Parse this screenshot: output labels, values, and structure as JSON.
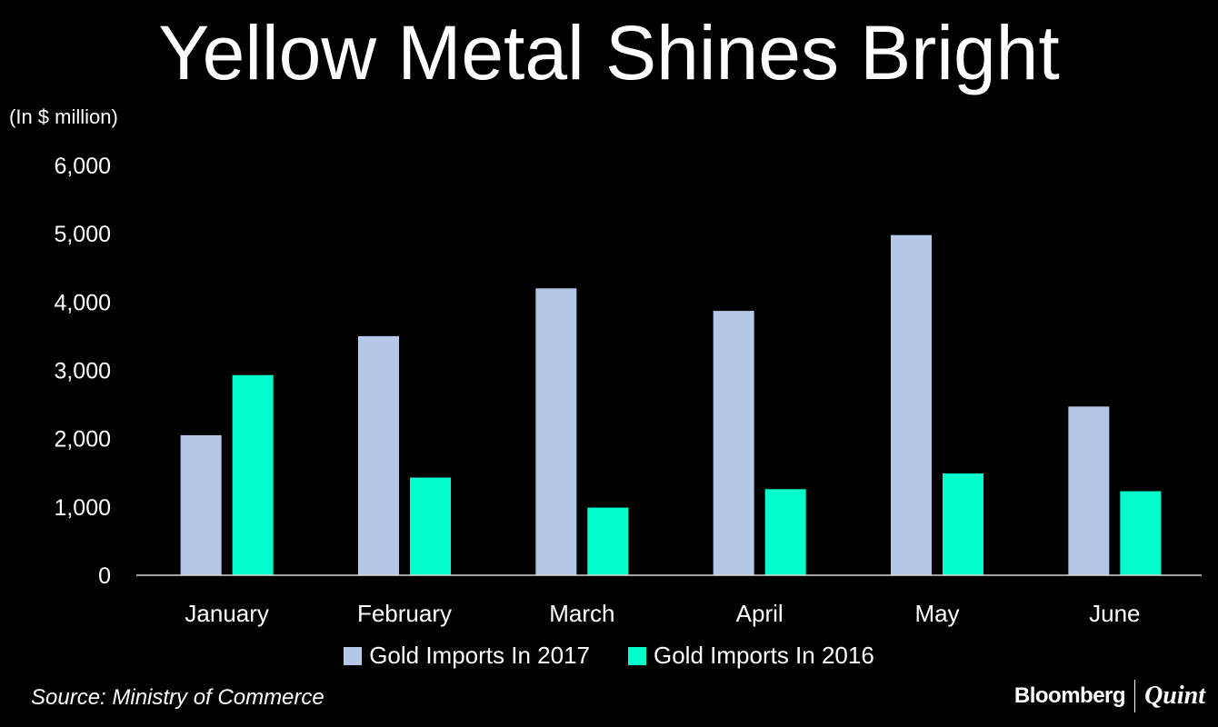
{
  "chart_data": {
    "type": "bar",
    "title": "Yellow Metal Shines Bright",
    "unit_label": "(In $ million)",
    "categories": [
      "January",
      "February",
      "March",
      "April",
      "May",
      "June"
    ],
    "series": [
      {
        "name": "Gold Imports In 2017",
        "color": "#b4c7e7",
        "values": [
          2050,
          3500,
          4200,
          3870,
          4980,
          2470
        ]
      },
      {
        "name": "Gold Imports In 2016",
        "color": "#00ffcc",
        "values": [
          2930,
          1430,
          990,
          1260,
          1490,
          1230
        ]
      }
    ],
    "y_ticks": [
      "0",
      "1,000",
      "2,000",
      "3,000",
      "4,000",
      "5,000",
      "6,000"
    ],
    "ylim": [
      0,
      6000
    ],
    "grid": false,
    "legend_position": "bottom"
  },
  "footer": {
    "source": "Source: Ministry of Commerce",
    "brand_primary": "Bloomberg",
    "brand_secondary": "Quint"
  }
}
